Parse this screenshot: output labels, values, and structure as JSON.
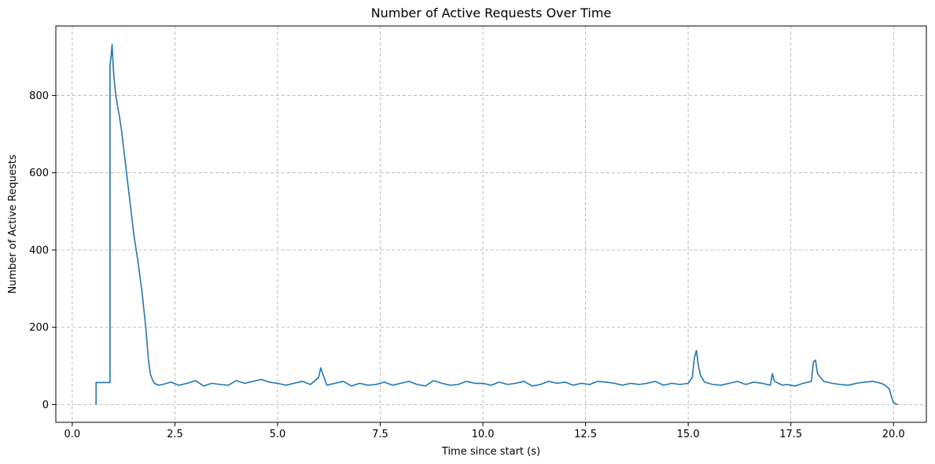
{
  "chart_data": {
    "type": "line",
    "title": "Number of Active Requests Over Time",
    "xlabel": "Time since start (s)",
    "ylabel": "Number of Active Requests",
    "xlim": [
      -0.4,
      20.8
    ],
    "ylim": [
      -46,
      980
    ],
    "xticks": [
      0.0,
      2.5,
      5.0,
      7.5,
      10.0,
      12.5,
      15.0,
      17.5,
      20.0
    ],
    "xtick_labels": [
      "0.0",
      "2.5",
      "5.0",
      "7.5",
      "10.0",
      "12.5",
      "15.0",
      "17.5",
      "20.0"
    ],
    "yticks": [
      0,
      200,
      400,
      600,
      800
    ],
    "ytick_labels": [
      "0",
      "200",
      "400",
      "600",
      "800"
    ],
    "grid": true,
    "grid_style": "dashed",
    "line_color": "#1f77b4",
    "series": [
      {
        "x": [
          0.58,
          0.58,
          0.74,
          0.92,
          0.92,
          0.95,
          0.97,
          1.0,
          1.03,
          1.06,
          1.1,
          1.15,
          1.2,
          1.3,
          1.4,
          1.5,
          1.6,
          1.7,
          1.8,
          1.85,
          1.9,
          1.95,
          2.0,
          2.1,
          2.2,
          2.4,
          2.6,
          2.8,
          3.0,
          3.2,
          3.4,
          3.6,
          3.8,
          4.0,
          4.2,
          4.4,
          4.6,
          4.8,
          5.0,
          5.2,
          5.4,
          5.6,
          5.8,
          6.0,
          6.05,
          6.2,
          6.4,
          6.6,
          6.8,
          7.0,
          7.2,
          7.4,
          7.6,
          7.8,
          8.0,
          8.2,
          8.4,
          8.6,
          8.8,
          9.0,
          9.2,
          9.4,
          9.6,
          9.8,
          10.0,
          10.2,
          10.4,
          10.6,
          10.8,
          11.0,
          11.2,
          11.4,
          11.6,
          11.8,
          12.0,
          12.2,
          12.4,
          12.6,
          12.8,
          13.0,
          13.2,
          13.4,
          13.6,
          13.8,
          14.0,
          14.2,
          14.4,
          14.6,
          14.8,
          15.0,
          15.1,
          15.15,
          15.2,
          15.25,
          15.3,
          15.4,
          15.6,
          15.8,
          16.0,
          16.2,
          16.4,
          16.6,
          16.8,
          17.0,
          17.05,
          17.1,
          17.2,
          17.3,
          17.4,
          17.6,
          17.8,
          18.0,
          18.05,
          18.1,
          18.15,
          18.3,
          18.5,
          18.7,
          18.9,
          19.1,
          19.3,
          19.5,
          19.7,
          19.8,
          19.9,
          19.95,
          20.0,
          20.05,
          20.1
        ],
        "y": [
          0,
          57,
          57,
          57,
          880,
          905,
          932,
          870,
          830,
          800,
          775,
          745,
          710,
          620,
          530,
          440,
          370,
          290,
          190,
          120,
          80,
          65,
          55,
          50,
          52,
          58,
          50,
          55,
          62,
          48,
          55,
          52,
          50,
          62,
          55,
          60,
          65,
          58,
          55,
          50,
          55,
          60,
          52,
          70,
          95,
          50,
          55,
          60,
          48,
          55,
          50,
          52,
          58,
          50,
          55,
          60,
          52,
          48,
          62,
          55,
          50,
          52,
          60,
          55,
          55,
          50,
          58,
          52,
          55,
          60,
          48,
          52,
          60,
          55,
          58,
          50,
          55,
          52,
          60,
          58,
          55,
          50,
          55,
          52,
          55,
          60,
          50,
          55,
          52,
          55,
          70,
          120,
          140,
          100,
          75,
          58,
          52,
          50,
          55,
          60,
          52,
          58,
          55,
          50,
          80,
          60,
          55,
          50,
          52,
          48,
          55,
          60,
          110,
          115,
          80,
          60,
          55,
          52,
          50,
          55,
          58,
          60,
          55,
          50,
          40,
          20,
          5,
          2,
          0
        ]
      }
    ]
  }
}
